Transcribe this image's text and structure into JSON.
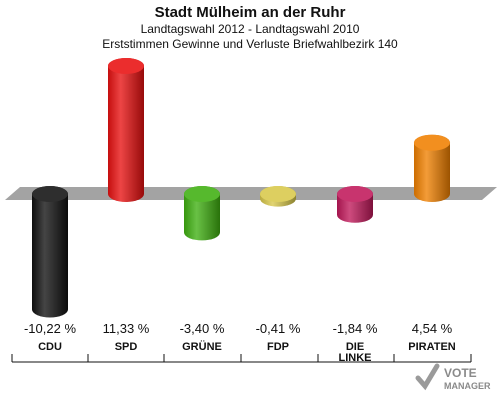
{
  "header": {
    "title": "Stadt Mülheim an der Ruhr",
    "subtitle1": "Landtagswahl 2012 - Landtagswahl 2010",
    "subtitle2": "Erststimmen Gewinne und Verluste Briefwahlbezirk 140"
  },
  "chart_data": {
    "type": "bar",
    "categories": [
      "CDU",
      "SPD",
      "GRÜNE",
      "FDP",
      "DIE LINKE",
      "PIRATEN"
    ],
    "values": [
      -10.22,
      11.33,
      -3.4,
      -0.41,
      -1.84,
      4.54
    ],
    "value_labels": [
      "-10,22 %",
      "11,33 %",
      "-3,40 %",
      "-0,41 %",
      "-1,84 %",
      "4,54 %"
    ],
    "colors": [
      "#111111",
      "#e81010",
      "#3fb010",
      "#d8c84a",
      "#c0185a",
      "#f08000"
    ],
    "axis_color": "#a0a0a0"
  },
  "logo": {
    "line1": "VOTE",
    "line2": "MANAGER"
  }
}
